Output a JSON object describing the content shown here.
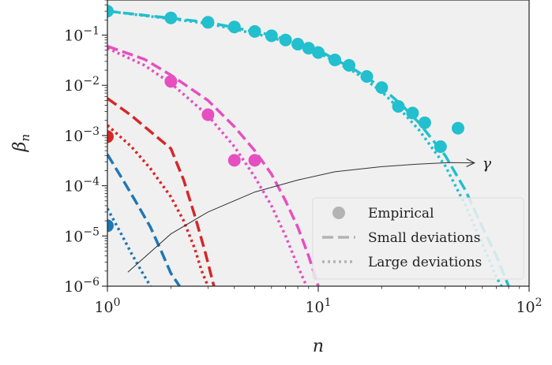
{
  "chart_data": {
    "type": "scatter",
    "title": "",
    "xlabel": "n",
    "ylabel": "β",
    "ylabel_sub": "n",
    "xscale": "log",
    "yscale": "log",
    "xlim": [
      1,
      100
    ],
    "ylim": [
      1e-06,
      0.5
    ],
    "grid": false,
    "background": "#f0f0f0",
    "x_ticks": [
      {
        "value": 1,
        "base": "10",
        "exp": "0"
      },
      {
        "value": 10,
        "base": "10",
        "exp": "1"
      },
      {
        "value": 100,
        "base": "10",
        "exp": "2"
      }
    ],
    "y_ticks": [
      {
        "value": 0.1,
        "base": "10",
        "exp": "−1"
      },
      {
        "value": 0.01,
        "base": "10",
        "exp": "−2"
      },
      {
        "value": 0.001,
        "base": "10",
        "exp": "−3"
      },
      {
        "value": 0.0001,
        "base": "10",
        "exp": "−4"
      },
      {
        "value": 1e-05,
        "base": "10",
        "exp": "−5"
      },
      {
        "value": 1e-06,
        "base": "10",
        "exp": "−6"
      }
    ],
    "legend": {
      "position": "lower-right",
      "entries": [
        {
          "label": "Empirical",
          "marker": "circle",
          "color": "#b3b3b3"
        },
        {
          "label": "Small deviations",
          "marker": "dashed",
          "color": "#b3b3b3"
        },
        {
          "label": "Large deviations",
          "marker": "dotted",
          "color": "#b3b3b3"
        }
      ]
    },
    "series": [
      {
        "name": "cyan",
        "color": "#22bfce",
        "empirical": [
          [
            1,
            0.3
          ],
          [
            2,
            0.22
          ],
          [
            3,
            0.18
          ],
          [
            4,
            0.145
          ],
          [
            5,
            0.118
          ],
          [
            6,
            0.097
          ],
          [
            7,
            0.08
          ],
          [
            8,
            0.066
          ],
          [
            9,
            0.055
          ],
          [
            10,
            0.045
          ],
          [
            12,
            0.032
          ],
          [
            14,
            0.025
          ],
          [
            17,
            0.015
          ],
          [
            20,
            0.009
          ],
          [
            24,
            0.0038
          ],
          [
            28,
            0.0028
          ],
          [
            32,
            0.0018
          ],
          [
            38,
            0.0006
          ],
          [
            46,
            0.0014
          ]
        ],
        "small": [
          [
            1,
            0.3
          ],
          [
            3,
            0.18
          ],
          [
            6,
            0.1
          ],
          [
            10,
            0.05
          ],
          [
            15,
            0.02
          ],
          [
            20,
            0.009
          ],
          [
            25,
            0.004
          ],
          [
            30,
            0.0018
          ],
          [
            40,
            0.0004
          ],
          [
            50,
            8e-05
          ],
          [
            60,
            1.5e-05
          ],
          [
            70,
            4e-06
          ],
          [
            80,
            1e-06
          ]
        ],
        "large": [
          [
            1,
            0.3
          ],
          [
            3,
            0.17
          ],
          [
            6,
            0.09
          ],
          [
            10,
            0.045
          ],
          [
            15,
            0.018
          ],
          [
            20,
            0.0075
          ],
          [
            25,
            0.003
          ],
          [
            30,
            0.0013
          ],
          [
            40,
            0.00025
          ],
          [
            50,
            4e-05
          ],
          [
            60,
            7e-06
          ],
          [
            70,
            1.5e-06
          ],
          [
            74,
            1e-06
          ]
        ]
      },
      {
        "name": "magenta",
        "color": "#e64fc0",
        "empirical": [
          [
            2,
            0.012
          ],
          [
            3,
            0.0026
          ],
          [
            4,
            0.00032
          ],
          [
            5,
            0.00032
          ]
        ],
        "small": [
          [
            1,
            0.06
          ],
          [
            1.5,
            0.033
          ],
          [
            2,
            0.016
          ],
          [
            3,
            0.005
          ],
          [
            4,
            0.0015
          ],
          [
            5,
            0.0005
          ],
          [
            6,
            0.00017
          ],
          [
            7,
            5e-05
          ],
          [
            8,
            1.5e-05
          ],
          [
            9,
            4e-06
          ],
          [
            10,
            1e-06
          ]
        ],
        "large": [
          [
            1,
            0.055
          ],
          [
            1.5,
            0.025
          ],
          [
            2,
            0.011
          ],
          [
            3,
            0.0025
          ],
          [
            4,
            0.0006
          ],
          [
            5,
            0.00015
          ],
          [
            6,
            4e-05
          ],
          [
            7,
            1e-05
          ],
          [
            8,
            2.5e-06
          ],
          [
            8.8,
            1e-06
          ]
        ]
      },
      {
        "name": "red",
        "color": "#d62728",
        "empirical": [
          [
            1,
            0.00095
          ]
        ],
        "small": [
          [
            1,
            0.0055
          ],
          [
            1.3,
            0.0025
          ],
          [
            1.6,
            0.0012
          ],
          [
            2,
            0.00055
          ],
          [
            2.3,
            0.00013
          ],
          [
            2.6,
            2.5e-05
          ],
          [
            2.9,
            5e-06
          ],
          [
            3.2,
            1e-06
          ]
        ],
        "large": [
          [
            1,
            0.0016
          ],
          [
            1.3,
            0.0006
          ],
          [
            1.6,
            0.00022
          ],
          [
            2,
            6e-05
          ],
          [
            2.3,
            2e-05
          ],
          [
            2.6,
            5.5e-06
          ],
          [
            2.8,
            2e-06
          ],
          [
            3,
            1e-06
          ]
        ]
      },
      {
        "name": "blue",
        "color": "#1f77b4",
        "empirical": [
          [
            1,
            1.6e-05
          ]
        ],
        "small": [
          [
            1,
            0.00042
          ],
          [
            1.2,
            0.00012
          ],
          [
            1.4,
            4e-05
          ],
          [
            1.6,
            1.5e-05
          ],
          [
            1.8,
            5e-06
          ],
          [
            2,
            1.8e-06
          ],
          [
            2.2,
            1e-06
          ]
        ],
        "large": [
          [
            1,
            3.5e-05
          ],
          [
            1.15,
            1.2e-05
          ],
          [
            1.3,
            4.5e-06
          ],
          [
            1.45,
            2e-06
          ],
          [
            1.6,
            1e-06
          ]
        ]
      }
    ],
    "annotations": [
      {
        "type": "arrow",
        "text": "γ",
        "color": "#333333",
        "path": [
          [
            1.25,
            1.9e-06
          ],
          [
            2,
            1.1e-05
          ],
          [
            3,
            3e-05
          ],
          [
            5,
            7.5e-05
          ],
          [
            8,
            0.00013
          ],
          [
            12,
            0.00019
          ],
          [
            20,
            0.00024
          ],
          [
            30,
            0.00027
          ],
          [
            42,
            0.00029
          ],
          [
            55,
            0.000285
          ]
        ]
      }
    ]
  }
}
